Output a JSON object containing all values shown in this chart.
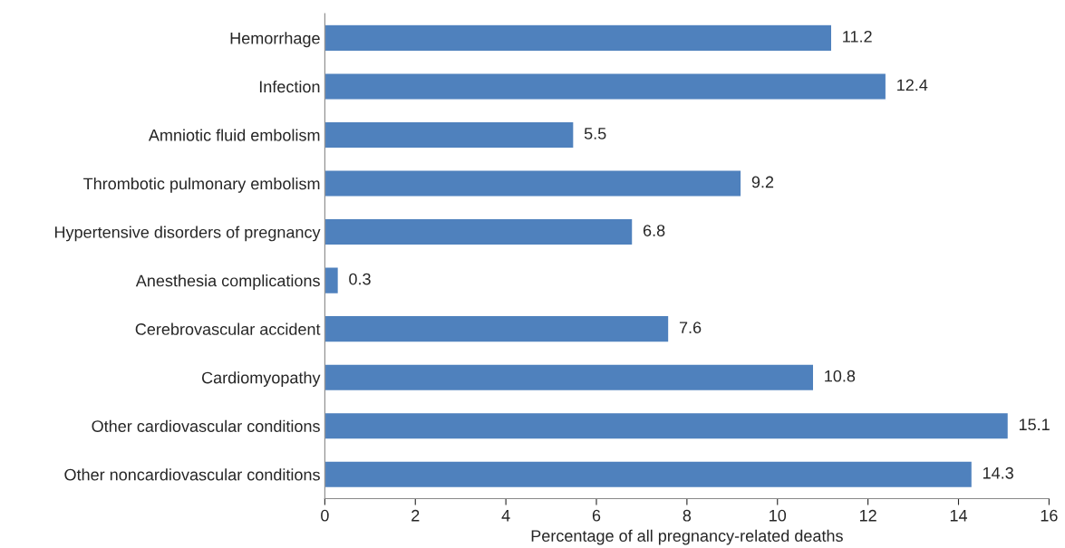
{
  "chart_data": {
    "type": "bar",
    "orientation": "horizontal",
    "xlabel": "Percentage of all pregnancy-related deaths",
    "categories": [
      "Hemorrhage",
      "Infection",
      "Amniotic fluid embolism",
      "Thrombotic pulmonary embolism",
      "Hypertensive disorders of pregnancy",
      "Anesthesia complications",
      "Cerebrovascular accident",
      "Cardiomyopathy",
      "Other cardiovascular conditions",
      "Other noncardiovascular conditions"
    ],
    "values": [
      11.2,
      12.4,
      5.5,
      9.2,
      6.8,
      0.3,
      7.6,
      10.8,
      15.1,
      14.3
    ],
    "color": "#4f81bd",
    "xlim": [
      0,
      16
    ],
    "xticks": [
      0,
      2,
      4,
      6,
      8,
      10,
      12,
      14,
      16
    ],
    "grid": false,
    "data_labels": true,
    "legend": false
  }
}
